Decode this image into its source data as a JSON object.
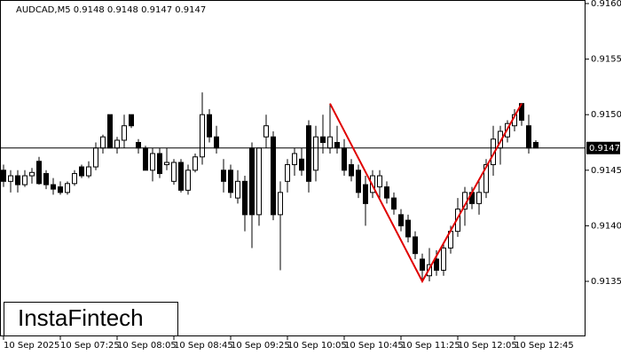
{
  "chart_data": {
    "type": "candlestick",
    "title": "AUDCAD,M5  0.9148 0.9148 0.9147 0.9147",
    "logo": "InstaFintech",
    "categories": [
      "10 Sep 2025",
      null,
      null,
      null,
      null,
      null,
      null,
      null,
      "10 Sep 07:25",
      null,
      null,
      null,
      null,
      null,
      null,
      null,
      "10 Sep 08:05",
      null,
      null,
      null,
      null,
      null,
      null,
      null,
      "10 Sep 08:45",
      null,
      null,
      null,
      null,
      null,
      null,
      null,
      "10 Sep 09:25",
      null,
      null,
      null,
      null,
      null,
      null,
      null,
      "10 Sep 10:05",
      null,
      null,
      null,
      null,
      null,
      null,
      null,
      "10 Sep 10:45",
      null,
      null,
      null,
      null,
      null,
      null,
      null,
      "10 Sep 11:25",
      null,
      null,
      null,
      null,
      null,
      null,
      null,
      "10 Sep 12:05",
      null,
      null,
      null,
      null,
      null,
      null,
      null,
      "10 Sep 12:45",
      null,
      null,
      null
    ],
    "open": [
      0.9145,
      0.9144,
      0.91445,
      0.91437,
      0.91445,
      0.91458,
      0.91447,
      0.91437,
      0.91435,
      0.9143,
      0.91438,
      0.91453,
      0.91445,
      0.91453,
      0.9147,
      0.915,
      0.9147,
      0.91477,
      0.915,
      0.91475,
      0.9147,
      0.9145,
      0.91465,
      0.91455,
      0.9144,
      0.91457,
      0.91432,
      0.9145,
      0.91462,
      0.915,
      0.9148,
      0.9145,
      0.9145,
      0.91425,
      0.9144,
      0.9147,
      0.9141,
      0.9148,
      0.9148,
      0.9141,
      0.9144,
      0.91455,
      0.9146,
      0.9149,
      0.9145,
      0.9148,
      0.9147,
      0.91475,
      0.9147,
      0.91455,
      0.9145,
      0.91437,
      0.9143,
      0.91435,
      0.91435,
      0.91425,
      0.9141,
      0.91405,
      0.9139,
      0.9137,
      0.91355,
      0.9137,
      0.9136,
      0.9138,
      0.91395,
      0.91415,
      0.9143,
      0.9142,
      0.9143,
      0.91455,
      0.9147,
      0.9148,
      0.9149,
      0.9151,
      0.9149,
      0.91475
    ],
    "high": [
      0.91455,
      0.9145,
      0.9145,
      0.9145,
      0.91452,
      0.91462,
      0.9145,
      0.91443,
      0.9144,
      0.9144,
      0.9145,
      0.91455,
      0.91458,
      0.91475,
      0.91482,
      0.915,
      0.9148,
      0.915,
      0.915,
      0.91478,
      0.91472,
      0.9147,
      0.9147,
      0.9147,
      0.9146,
      0.9146,
      0.91455,
      0.91465,
      0.9152,
      0.91505,
      0.9149,
      0.9146,
      0.91455,
      0.9145,
      0.91445,
      0.91475,
      0.9147,
      0.915,
      0.91485,
      0.9144,
      0.9146,
      0.9147,
      0.9147,
      0.91495,
      0.9149,
      0.915,
      0.9151,
      0.9149,
      0.91478,
      0.9146,
      0.91455,
      0.91445,
      0.9145,
      0.9145,
      0.9144,
      0.9143,
      0.91415,
      0.9141,
      0.91395,
      0.91375,
      0.9138,
      0.91378,
      0.91385,
      0.914,
      0.91425,
      0.91435,
      0.91435,
      0.9144,
      0.9146,
      0.9149,
      0.9149,
      0.91495,
      0.91505,
      0.9151,
      0.915,
      0.91477
    ],
    "low": [
      0.91435,
      0.9143,
      0.9143,
      0.91435,
      0.91438,
      0.91437,
      0.91433,
      0.91428,
      0.91428,
      0.91428,
      0.91436,
      0.91443,
      0.91443,
      0.9145,
      0.91465,
      0.9147,
      0.91465,
      0.9147,
      0.91488,
      0.91465,
      0.9145,
      0.9144,
      0.91443,
      0.9145,
      0.91437,
      0.9143,
      0.91428,
      0.91448,
      0.91455,
      0.91475,
      0.91465,
      0.9143,
      0.91425,
      0.9142,
      0.91395,
      0.9138,
      0.914,
      0.9147,
      0.91405,
      0.9136,
      0.9143,
      0.91445,
      0.91445,
      0.9143,
      0.9144,
      0.91465,
      0.91465,
      0.91465,
      0.91445,
      0.9144,
      0.91425,
      0.914,
      0.91425,
      0.91425,
      0.9142,
      0.9141,
      0.91395,
      0.91385,
      0.9137,
      0.9135,
      0.9135,
      0.91355,
      0.91355,
      0.91375,
      0.9139,
      0.914,
      0.91415,
      0.9141,
      0.91425,
      0.91445,
      0.91455,
      0.91475,
      0.91485,
      0.9149,
      0.91465,
      0.9147
    ],
    "close": [
      0.9144,
      0.91445,
      0.91437,
      0.91445,
      0.91448,
      0.91438,
      0.91437,
      0.91433,
      0.9143,
      0.91438,
      0.91447,
      0.91445,
      0.91453,
      0.9147,
      0.9148,
      0.9147,
      0.91477,
      0.9149,
      0.9149,
      0.9147,
      0.9145,
      0.91465,
      0.91447,
      0.91457,
      0.91457,
      0.91432,
      0.9145,
      0.91462,
      0.915,
      0.9148,
      0.9147,
      0.9144,
      0.9143,
      0.9144,
      0.9141,
      0.9141,
      0.9147,
      0.9149,
      0.9141,
      0.9143,
      0.91455,
      0.91465,
      0.9145,
      0.9144,
      0.9148,
      0.91475,
      0.9148,
      0.9147,
      0.9145,
      0.91445,
      0.9143,
      0.9142,
      0.91445,
      0.91445,
      0.91425,
      0.91415,
      0.914,
      0.9139,
      0.91375,
      0.9136,
      0.91365,
      0.9136,
      0.9138,
      0.91395,
      0.91415,
      0.9143,
      0.9142,
      0.9143,
      0.91455,
      0.91478,
      0.91485,
      0.91492,
      0.915,
      0.91495,
      0.9147,
      0.9147
    ],
    "up_color": "#ffffff",
    "down_color": "#000000",
    "ylim": [
      0.913,
      0.916
    ],
    "yticks": [
      {
        "value": 0.916,
        "label": "0.9160"
      },
      0.9155,
      {
        "value": 0.915,
        "label": "0.9150"
      },
      0.9145,
      {
        "value": 0.914,
        "label": "0.9140"
      },
      0.9135
    ],
    "last_price": 0.9147,
    "pattern": {
      "x": [
        46,
        59,
        73
      ],
      "values": [
        0.9151,
        0.9135,
        0.9151
      ],
      "color": "#e00000"
    }
  }
}
